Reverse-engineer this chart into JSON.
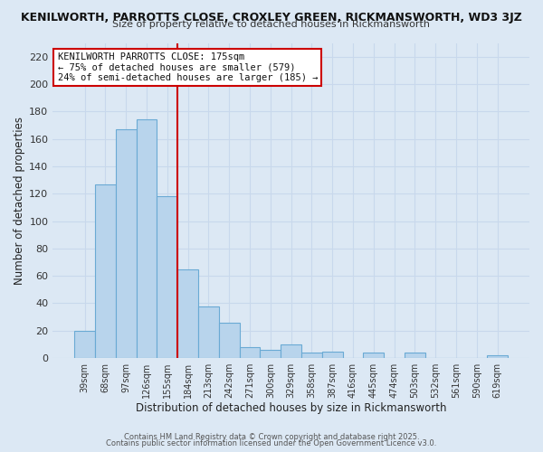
{
  "title_line1": "KENILWORTH, PARROTTS CLOSE, CROXLEY GREEN, RICKMANSWORTH, WD3 3JZ",
  "title_line2": "Size of property relative to detached houses in Rickmansworth",
  "xlabel": "Distribution of detached houses by size in Rickmansworth",
  "ylabel": "Number of detached properties",
  "bin_labels": [
    "39sqm",
    "68sqm",
    "97sqm",
    "126sqm",
    "155sqm",
    "184sqm",
    "213sqm",
    "242sqm",
    "271sqm",
    "300sqm",
    "329sqm",
    "358sqm",
    "387sqm",
    "416sqm",
    "445sqm",
    "474sqm",
    "503sqm",
    "532sqm",
    "561sqm",
    "590sqm",
    "619sqm"
  ],
  "bar_heights": [
    20,
    127,
    167,
    174,
    118,
    65,
    38,
    26,
    8,
    6,
    10,
    4,
    5,
    0,
    4,
    0,
    4,
    0,
    0,
    0,
    2
  ],
  "bar_color": "#b8d4ec",
  "bar_edge_color": "#6aaad4",
  "vline_color": "#cc0000",
  "annotation_text": "KENILWORTH PARROTTS CLOSE: 175sqm\n← 75% of detached houses are smaller (579)\n24% of semi-detached houses are larger (185) →",
  "annotation_box_color": "#ffffff",
  "annotation_border_color": "#cc0000",
  "ylim": [
    0,
    230
  ],
  "yticks": [
    0,
    20,
    40,
    60,
    80,
    100,
    120,
    140,
    160,
    180,
    200,
    220
  ],
  "grid_color": "#c8d8ec",
  "background_color": "#dce8f4",
  "footer_line1": "Contains HM Land Registry data © Crown copyright and database right 2025.",
  "footer_line2": "Contains public sector information licensed under the Open Government Licence v3.0.",
  "fig_width": 6.0,
  "fig_height": 5.0
}
